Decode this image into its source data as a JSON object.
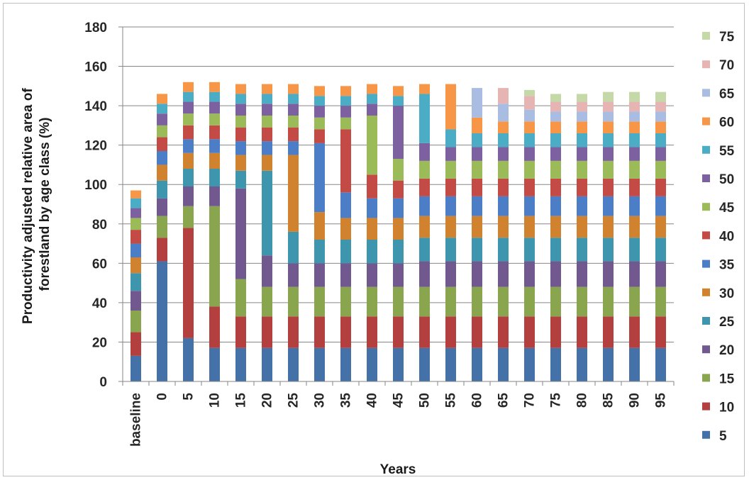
{
  "chart_data": {
    "type": "bar",
    "stacked": true,
    "title": "",
    "xlabel": "Years",
    "ylabel": "Productivity adjusted relative area of forestland by age class (%)",
    "ylabel_lines": [
      "Productivity adjusted relative area of",
      "forestland by age class (%)"
    ],
    "ylim": [
      0,
      180
    ],
    "yticks": [
      0,
      20,
      40,
      60,
      80,
      100,
      120,
      140,
      160,
      180
    ],
    "grid": "horizontal",
    "legend_position": "right",
    "categories": [
      "baseline",
      "0",
      "5",
      "10",
      "15",
      "20",
      "25",
      "30",
      "35",
      "40",
      "45",
      "50",
      "55",
      "60",
      "65",
      "70",
      "75",
      "80",
      "85",
      "90",
      "95"
    ],
    "series": [
      {
        "name": "5",
        "color": "#4472a8",
        "values": [
          13,
          61,
          22,
          17,
          17,
          17,
          17,
          17,
          17,
          17,
          17,
          17,
          17,
          17,
          17,
          17,
          17,
          17,
          17,
          17,
          17
        ]
      },
      {
        "name": "10",
        "color": "#b3403f",
        "values": [
          12,
          12,
          56,
          21,
          16,
          16,
          16,
          16,
          16,
          16,
          16,
          16,
          16,
          16,
          16,
          16,
          16,
          16,
          16,
          16,
          16
        ]
      },
      {
        "name": "15",
        "color": "#89a54e",
        "values": [
          11,
          11,
          11,
          51,
          19,
          15,
          15,
          15,
          15,
          15,
          15,
          15,
          15,
          15,
          15,
          15,
          15,
          15,
          15,
          15,
          15
        ]
      },
      {
        "name": "20",
        "color": "#71588f",
        "values": [
          10,
          9,
          10,
          10,
          46,
          16,
          12,
          12,
          12,
          12,
          12,
          13,
          13,
          13,
          13,
          13,
          13,
          13,
          13,
          13,
          13
        ]
      },
      {
        "name": "25",
        "color": "#3d96ae",
        "values": [
          9,
          9,
          9,
          9,
          9,
          43,
          16,
          12,
          12,
          12,
          12,
          12,
          12,
          12,
          12,
          12,
          12,
          12,
          12,
          12,
          12
        ]
      },
      {
        "name": "30",
        "color": "#d1822e",
        "values": [
          8,
          8,
          8,
          8,
          8,
          8,
          39,
          14,
          11,
          11,
          11,
          11,
          11,
          11,
          11,
          11,
          11,
          11,
          11,
          11,
          11
        ]
      },
      {
        "name": "35",
        "color": "#4c7dc7",
        "values": [
          7,
          7,
          7,
          7,
          7,
          7,
          7,
          35,
          13,
          10,
          10,
          10,
          10,
          10,
          10,
          10,
          10,
          10,
          10,
          10,
          10
        ]
      },
      {
        "name": "40",
        "color": "#c44a46",
        "values": [
          7,
          7,
          7,
          7,
          7,
          7,
          7,
          7,
          32,
          12,
          9,
          9,
          9,
          9,
          9,
          9,
          9,
          9,
          9,
          9,
          9
        ]
      },
      {
        "name": "45",
        "color": "#9bbb59",
        "values": [
          6,
          6,
          6,
          6,
          6,
          6,
          6,
          6,
          6,
          30,
          11,
          9,
          9,
          9,
          9,
          9,
          9,
          9,
          9,
          9,
          9
        ]
      },
      {
        "name": "50",
        "color": "#7d60a0",
        "values": [
          5,
          6,
          6,
          6,
          6,
          6,
          6,
          6,
          6,
          6,
          27,
          9,
          7,
          7,
          7,
          7,
          7,
          7,
          7,
          7,
          7
        ]
      },
      {
        "name": "55",
        "color": "#4bacc6",
        "values": [
          5,
          5,
          5,
          5,
          5,
          5,
          5,
          5,
          5,
          5,
          5,
          25,
          9,
          7,
          7,
          7,
          7,
          7,
          7,
          7,
          7
        ]
      },
      {
        "name": "60",
        "color": "#f79646",
        "values": [
          4,
          5,
          5,
          5,
          5,
          5,
          5,
          5,
          5,
          5,
          5,
          5,
          23,
          8,
          6,
          6,
          6,
          6,
          6,
          6,
          6
        ]
      },
      {
        "name": "65",
        "color": "#a9bde2",
        "values": [
          0,
          0,
          0,
          0,
          0,
          0,
          0,
          0,
          0,
          0,
          0,
          0,
          0,
          15,
          9,
          6,
          5,
          5,
          5,
          5,
          5
        ]
      },
      {
        "name": "70",
        "color": "#e6b5b3",
        "values": [
          0,
          0,
          0,
          0,
          0,
          0,
          0,
          0,
          0,
          0,
          0,
          0,
          0,
          0,
          8,
          7,
          5,
          5,
          5,
          5,
          5
        ]
      },
      {
        "name": "75",
        "color": "#c5d9a8",
        "values": [
          0,
          0,
          0,
          0,
          0,
          0,
          0,
          0,
          0,
          0,
          0,
          0,
          0,
          0,
          0,
          3,
          4,
          4,
          5,
          5,
          5
        ]
      }
    ]
  }
}
